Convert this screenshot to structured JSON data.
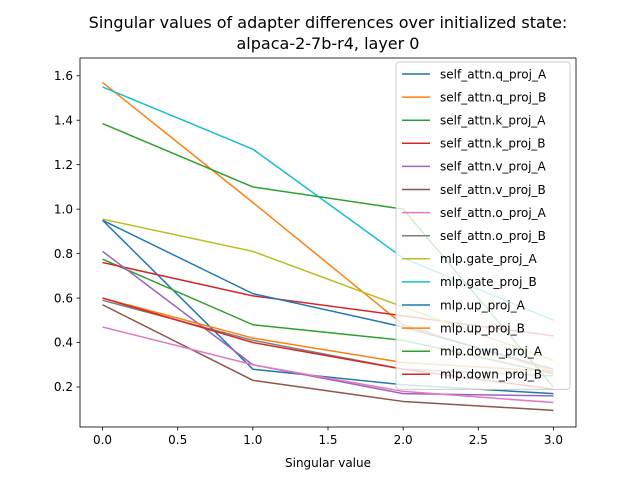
{
  "chart_data": {
    "type": "line",
    "title": "Singular values of adapter differences over initialized state:",
    "subtitle": "alpaca-2-7b-r4, layer 0",
    "xlabel": "Singular value",
    "ylabel": "",
    "xlim": [
      -0.15,
      3.15
    ],
    "ylim": [
      0.02,
      1.68
    ],
    "xticks": [
      "0.0",
      "0.5",
      "1.0",
      "1.5",
      "2.0",
      "2.5",
      "3.0"
    ],
    "yticks": [
      "0.2",
      "0.4",
      "0.6",
      "0.8",
      "1.0",
      "1.2",
      "1.4",
      "1.6"
    ],
    "grid": false,
    "legend_position": "top-right",
    "x": [
      0,
      1,
      2,
      3
    ],
    "series": [
      {
        "name": "self_attn.q_proj_A",
        "color": "#1f77b4",
        "values": [
          0.95,
          0.28,
          0.21,
          0.17
        ]
      },
      {
        "name": "self_attn.q_proj_B",
        "color": "#ff7f0e",
        "values": [
          1.57,
          1.03,
          0.48,
          0.27
        ]
      },
      {
        "name": "self_attn.k_proj_A",
        "color": "#2ca02c",
        "values": [
          0.775,
          0.48,
          0.41,
          0.26
        ]
      },
      {
        "name": "self_attn.k_proj_B",
        "color": "#d62728",
        "values": [
          0.76,
          0.61,
          0.52,
          0.43
        ]
      },
      {
        "name": "self_attn.v_proj_A",
        "color": "#9467bd",
        "values": [
          0.81,
          0.3,
          0.17,
          0.16
        ]
      },
      {
        "name": "self_attn.v_proj_B",
        "color": "#8c564b",
        "values": [
          0.57,
          0.23,
          0.135,
          0.095
        ]
      },
      {
        "name": "self_attn.o_proj_A",
        "color": "#e377c2",
        "values": [
          0.47,
          0.3,
          0.18,
          0.13
        ]
      },
      {
        "name": "self_attn.o_proj_B",
        "color": "#7f7f7f",
        "values": [
          0.59,
          0.41,
          0.28,
          0.25
        ]
      },
      {
        "name": "mlp.gate_proj_A",
        "color": "#bcbd22",
        "values": [
          0.955,
          0.81,
          0.56,
          0.32
        ]
      },
      {
        "name": "mlp.gate_proj_B",
        "color": "#17becf",
        "values": [
          1.55,
          1.27,
          0.78,
          0.5
        ]
      },
      {
        "name": "mlp.up_proj_A",
        "color": "#1f77b4",
        "values": [
          0.95,
          0.62,
          0.47,
          0.28
        ]
      },
      {
        "name": "mlp.up_proj_B",
        "color": "#ff7f0e",
        "values": [
          0.6,
          0.42,
          0.31,
          0.27
        ]
      },
      {
        "name": "mlp.down_proj_A",
        "color": "#2ca02c",
        "values": [
          1.385,
          1.1,
          1.0,
          0.2
        ]
      },
      {
        "name": "mlp.down_proj_B",
        "color": "#d62728",
        "values": [
          0.6,
          0.4,
          0.28,
          0.19
        ]
      }
    ]
  }
}
